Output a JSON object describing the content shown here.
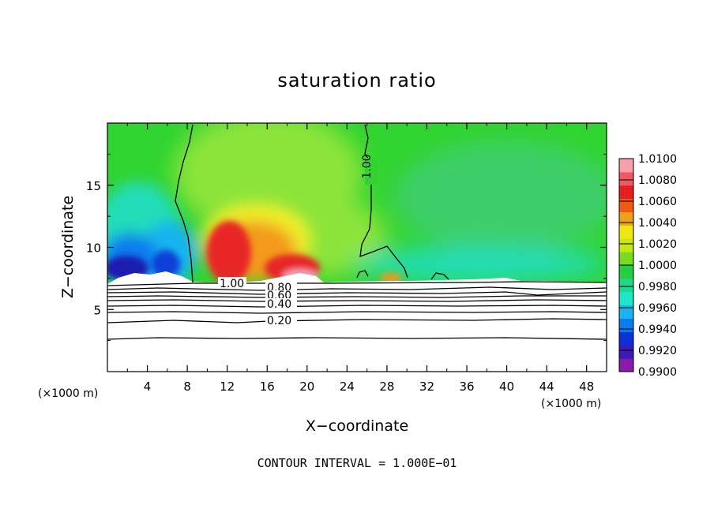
{
  "chart_data": {
    "type": "heatmap",
    "title": "saturation ratio",
    "xlabel": "X−coordinate",
    "ylabel": "Z−coordinate",
    "xunit_left": "(×1000 m)",
    "xunit_right": "(×1000 m)",
    "xlim": [
      0,
      50
    ],
    "ylim": [
      0,
      20
    ],
    "xticks": [
      4,
      8,
      12,
      16,
      20,
      24,
      28,
      32,
      36,
      40,
      44,
      48
    ],
    "yticks": [
      5,
      10,
      15
    ],
    "colorbar": {
      "min": 0.99,
      "max": 1.01,
      "ticks": [
        "1.0100",
        "1.0080",
        "1.0060",
        "1.0040",
        "1.0020",
        "1.0000",
        "0.9980",
        "0.9960",
        "0.9940",
        "0.9920",
        "0.9900"
      ],
      "colors": [
        "#8a1aa8",
        "#3a1ab8",
        "#0a30d8",
        "#0a7cf0",
        "#19b4f0",
        "#1ee6c8",
        "#1ed88c",
        "#22d042",
        "#78dc1e",
        "#c8e614",
        "#f0e614",
        "#f0a014",
        "#f05a14",
        "#e61e1e",
        "#ee5a64",
        "#f6a0aa"
      ]
    },
    "contour_labels": [
      "1.00",
      "1.00",
      "0.80",
      "0.60",
      "0.40",
      "0.20"
    ],
    "footnote": "CONTOUR INTERVAL = 1.000E−01",
    "colors": {
      "green": "#30d430",
      "light_green": "#8ce43a",
      "cyan": "#22ddb8",
      "blue": "#0a5ae8",
      "navy": "#1a1ab0",
      "yellow": "#f0ee2c",
      "orange": "#f39a1c",
      "red": "#e82626",
      "pink": "#f2a2b4"
    }
  }
}
